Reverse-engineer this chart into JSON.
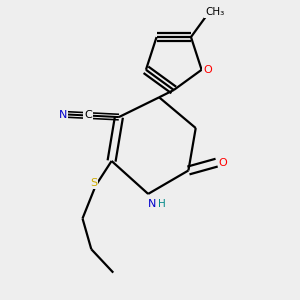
{
  "background_color": "#eeeeee",
  "bond_color": "#000000",
  "atom_colors": {
    "O": "#ff0000",
    "N": "#0000cc",
    "S": "#ccaa00",
    "H": "#008888"
  },
  "figsize": [
    3.0,
    3.0
  ],
  "dpi": 100,
  "lw": 1.6
}
